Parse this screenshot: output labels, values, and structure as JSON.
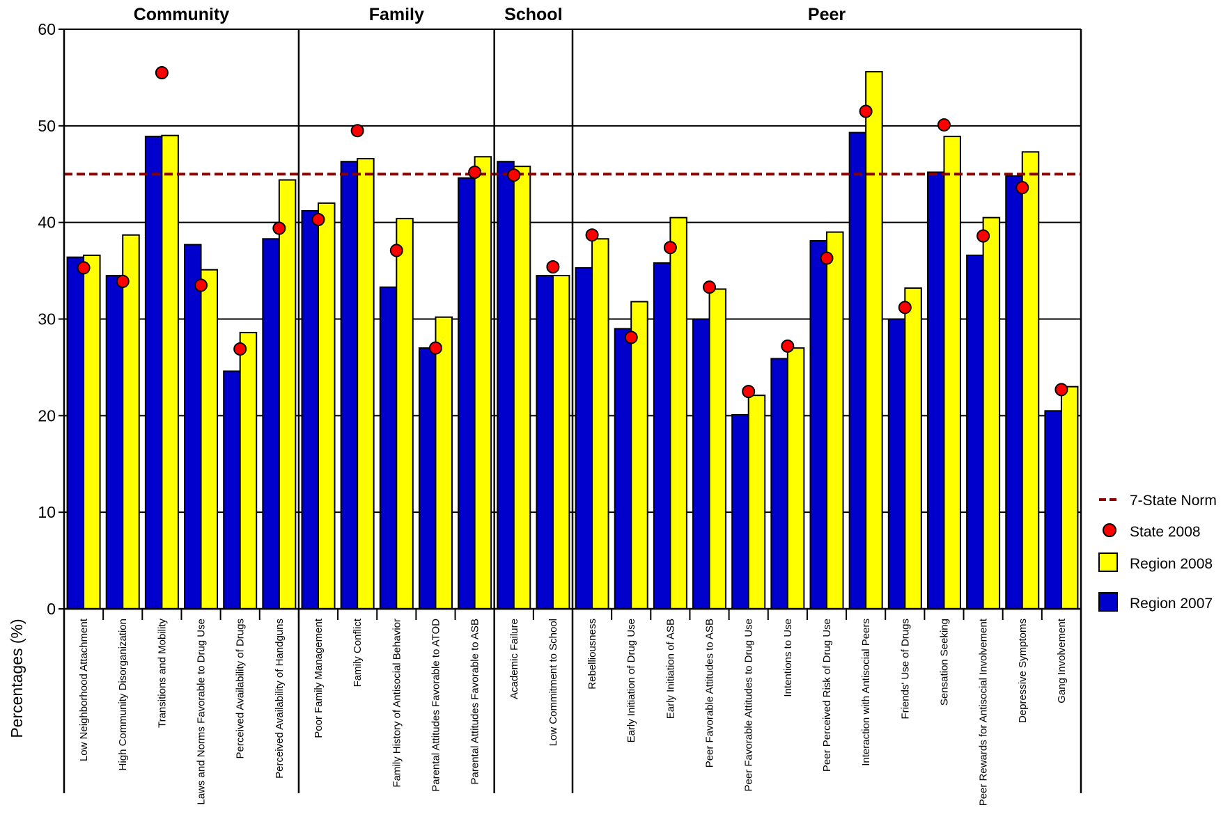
{
  "chart_data": {
    "type": "bar",
    "ylabel": "Percentages (%)",
    "xlabel": "",
    "ylim": [
      0,
      60
    ],
    "yticks": [
      "0",
      "10",
      "20",
      "30",
      "40",
      "50",
      "60"
    ],
    "grid": true,
    "legend_position": "right",
    "norm": {
      "name": "7-State Norm",
      "value": 45,
      "color": "#8b0000"
    },
    "groups": [
      {
        "name": "Community",
        "start": 0,
        "count": 6
      },
      {
        "name": "Family",
        "start": 6,
        "count": 5
      },
      {
        "name": "School",
        "start": 11,
        "count": 2
      },
      {
        "name": "Peer",
        "start": 13,
        "count": 13
      }
    ],
    "categories": [
      "Low Neighborhood Attachment",
      "High Community Disorganization",
      "Transitions and Mobility",
      "Laws and Norms Favorable to Drug Use",
      "Perceived Availability of Drugs",
      "Perceived Availability of Handguns",
      "Poor Family Management",
      "Family Conflict",
      "Family History of Antisocial Behavior",
      "Parental Attitudes Favorable to ATOD",
      "Parental Attitudes Favorable to ASB",
      "Academic Failure",
      "Low Commitment to School",
      "Rebelliousness",
      "Early Initiation of Drug Use",
      "Early Initiation of ASB",
      "Peer Favorable Attitudes to ASB",
      "Peer Favorable Attitudes to Drug Use",
      "Intentions to Use",
      "Peer Perceived Risk of Drug Use",
      "Interaction with Antisocial Peers",
      "Friends' Use of Drugs",
      "Sensation Seeking",
      "Peer Rewards for Antisocial Involvement",
      "Depressive Symptoms",
      "Gang Involvement"
    ],
    "series": [
      {
        "name": "Region 2007",
        "color": "#0000cc",
        "values": [
          36.4,
          34.5,
          48.9,
          37.7,
          24.6,
          38.3,
          41.2,
          46.3,
          33.3,
          27.0,
          44.6,
          46.3,
          34.5,
          35.3,
          29.0,
          35.8,
          30.0,
          20.1,
          25.9,
          38.1,
          49.3,
          30.0,
          45.2,
          36.6,
          44.8,
          20.5
        ]
      },
      {
        "name": "Region 2008",
        "color": "#ffff00",
        "values": [
          36.6,
          38.7,
          49.0,
          35.1,
          28.6,
          44.4,
          42.0,
          46.6,
          40.4,
          30.2,
          46.8,
          45.8,
          34.5,
          38.3,
          31.8,
          40.5,
          33.1,
          22.1,
          27.0,
          39.0,
          55.6,
          33.2,
          48.9,
          40.5,
          47.3,
          23.0
        ]
      },
      {
        "name": "State 2008",
        "color": "#ff0000",
        "values": [
          35.3,
          33.9,
          55.5,
          33.5,
          26.9,
          39.4,
          40.3,
          49.5,
          37.1,
          27.0,
          45.2,
          44.9,
          35.4,
          38.7,
          28.1,
          37.4,
          33.3,
          22.5,
          27.2,
          36.3,
          51.5,
          31.2,
          50.1,
          38.6,
          43.6,
          22.7
        ]
      }
    ],
    "legend": [
      "7-State Norm",
      "State 2008",
      "Region 2008",
      "Region 2007"
    ]
  }
}
